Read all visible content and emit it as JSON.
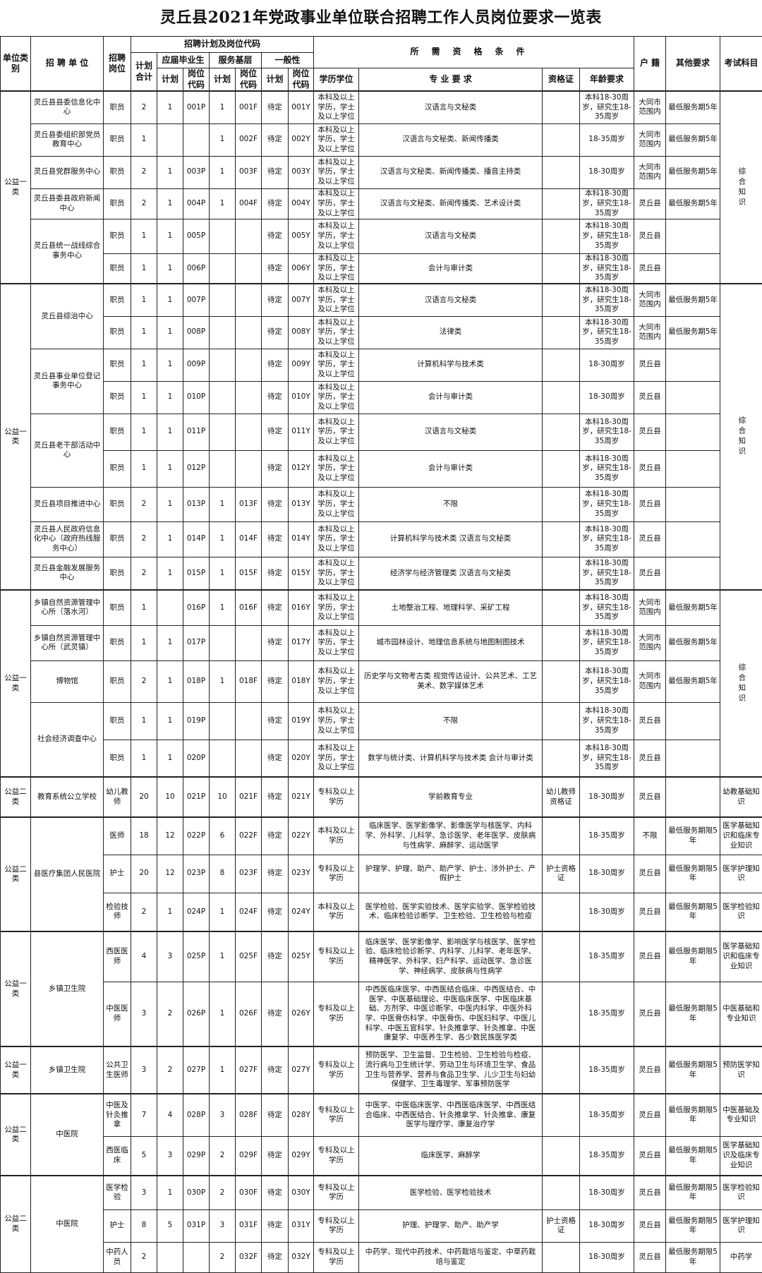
{
  "title": "灵丘县2021年党政事业单位联合招聘工作人员岗位要求一览表",
  "header": {
    "category": "单位类别",
    "unit": "招 聘 单 位",
    "post": "招聘岗位",
    "plan_group": "招聘计划及岗位代码",
    "plan_total": "计划合计",
    "graduates": "应届毕业生",
    "grassroots": "服务基层",
    "general": "一般性",
    "plan": "计划",
    "code": "岗位代码",
    "requirements": "所需资格条件",
    "education": "学历学位",
    "major": "专 业 要 求",
    "certificate": "资格证",
    "age": "年龄要求",
    "residence": "户 籍",
    "other": "其他要求",
    "exam": "考试科目"
  },
  "blocks": [
    {
      "category": "公益一类",
      "exam": "综合知识",
      "units": [
        {
          "name": "灵丘县县委信息化中心",
          "positions": [
            {
              "post": "职员",
              "total": "2",
              "g_plan": "1",
              "g_code": "001P",
              "s_plan": "1",
              "s_code": "001F",
              "n_plan": "待定",
              "n_code": "001Y",
              "edu": "本科及以上学历，学士及以上学位",
              "major": "汉语言与文秘类",
              "cert": "",
              "age": "本科18-30周岁，研究生18-35周岁",
              "residence": "大同市范围内",
              "other": "最低服务期5年"
            }
          ]
        },
        {
          "name": "灵丘县委组织部党员教育中心",
          "positions": [
            {
              "post": "职员",
              "total": "1",
              "g_plan": "",
              "g_code": "",
              "s_plan": "1",
              "s_code": "002F",
              "n_plan": "待定",
              "n_code": "002Y",
              "edu": "本科及以上学历，学士及以上学位",
              "major": "汉语言与文秘类、新闻传播类",
              "cert": "",
              "age": "18-35周岁",
              "residence": "大同市范围内",
              "other": "最低服务期5年"
            }
          ]
        },
        {
          "name": "灵丘县党群服务中心",
          "positions": [
            {
              "post": "职员",
              "total": "2",
              "g_plan": "1",
              "g_code": "003P",
              "s_plan": "1",
              "s_code": "003F",
              "n_plan": "待定",
              "n_code": "003Y",
              "edu": "本科及以上学历，学士及以上学位",
              "major": "汉语言与文秘类、新闻传播类、播音主持类",
              "cert": "",
              "age": "18-30周岁",
              "residence": "大同市范围内",
              "other": "最低服务期5年"
            }
          ]
        },
        {
          "name": "灵丘县委县政府新闻中心",
          "positions": [
            {
              "post": "职员",
              "total": "2",
              "g_plan": "1",
              "g_code": "004P",
              "s_plan": "1",
              "s_code": "004F",
              "n_plan": "待定",
              "n_code": "004Y",
              "edu": "本科及以上学历，学士及以上学位",
              "major": "汉语言与文秘类、新闻传播类、艺术设计类",
              "cert": "",
              "age": "本科18-30周岁，研究生18-35周岁",
              "residence": "灵丘县",
              "other": "最低服务期5年"
            }
          ]
        },
        {
          "name": "灵丘县统一战线综合事务中心",
          "positions": [
            {
              "post": "职员",
              "total": "1",
              "g_plan": "1",
              "g_code": "005P",
              "s_plan": "",
              "s_code": "",
              "n_plan": "待定",
              "n_code": "005Y",
              "edu": "本科及以上学历，学士及以上学位",
              "major": "汉语言与文秘类",
              "cert": "",
              "age": "本科18-30周岁，研究生18-35周岁",
              "residence": "灵丘县",
              "other": ""
            },
            {
              "post": "职员",
              "total": "1",
              "g_plan": "1",
              "g_code": "006P",
              "s_plan": "",
              "s_code": "",
              "n_plan": "待定",
              "n_code": "006Y",
              "edu": "本科及以上学历，学士及以上学位",
              "major": "会计与审计类",
              "cert": "",
              "age": "本科18-30周岁，研究生18-35周岁",
              "residence": "灵丘县",
              "other": ""
            }
          ]
        }
      ]
    },
    {
      "category": "公益一类",
      "exam": "综合知识",
      "units": [
        {
          "name": "灵丘县综治中心",
          "positions": [
            {
              "post": "职员",
              "total": "1",
              "g_plan": "1",
              "g_code": "007P",
              "s_plan": "",
              "s_code": "",
              "n_plan": "待定",
              "n_code": "007Y",
              "edu": "本科及以上学历，学士及以上学位",
              "major": "汉语言与文秘类",
              "cert": "",
              "age": "本科18-30周岁，研究生18-35周岁",
              "residence": "大同市范围内",
              "other": "最低服务期5年"
            },
            {
              "post": "职员",
              "total": "1",
              "g_plan": "1",
              "g_code": "008P",
              "s_plan": "",
              "s_code": "",
              "n_plan": "待定",
              "n_code": "008Y",
              "edu": "本科及以上学历，学士及以上学位",
              "major": "法律类",
              "cert": "",
              "age": "本科18-30周岁，研究生18-35周岁",
              "residence": "大同市范围内",
              "other": "最低服务期5年"
            }
          ]
        },
        {
          "name": "灵丘县事业单位登记事务中心",
          "positions": [
            {
              "post": "职员",
              "total": "1",
              "g_plan": "1",
              "g_code": "009P",
              "s_plan": "",
              "s_code": "",
              "n_plan": "待定",
              "n_code": "009Y",
              "edu": "本科及以上学历，学士及以上学位",
              "major": "计算机科学与技术类",
              "cert": "",
              "age": "18-30周岁",
              "residence": "灵丘县",
              "other": ""
            },
            {
              "post": "职员",
              "total": "1",
              "g_plan": "1",
              "g_code": "010P",
              "s_plan": "",
              "s_code": "",
              "n_plan": "待定",
              "n_code": "010Y",
              "edu": "本科及以上学历，学士及以上学位",
              "major": "会计与审计类",
              "cert": "",
              "age": "18-30周岁",
              "residence": "灵丘县",
              "other": ""
            }
          ]
        },
        {
          "name": "灵丘县老干部活动中心",
          "positions": [
            {
              "post": "职员",
              "total": "1",
              "g_plan": "1",
              "g_code": "011P",
              "s_plan": "",
              "s_code": "",
              "n_plan": "待定",
              "n_code": "011Y",
              "edu": "本科及以上学历，学士及以上学位",
              "major": "汉语言与文秘类",
              "cert": "",
              "age": "本科18-30周岁，研究生18-35周岁",
              "residence": "灵丘县",
              "other": ""
            },
            {
              "post": "职员",
              "total": "1",
              "g_plan": "1",
              "g_code": "012P",
              "s_plan": "",
              "s_code": "",
              "n_plan": "待定",
              "n_code": "012Y",
              "edu": "本科及以上学历，学士及以上学位",
              "major": "会计与审计类",
              "cert": "",
              "age": "本科18-30周岁，研究生18-35周岁",
              "residence": "灵丘县",
              "other": ""
            }
          ]
        },
        {
          "name": "灵丘县项目推进中心",
          "positions": [
            {
              "post": "职员",
              "total": "2",
              "g_plan": "1",
              "g_code": "013P",
              "s_plan": "1",
              "s_code": "013F",
              "n_plan": "待定",
              "n_code": "013Y",
              "edu": "本科及以上学历，学士及以上学位",
              "major": "不限",
              "cert": "",
              "age": "本科18-30周岁，研究生18-35周岁",
              "residence": "灵丘县",
              "other": ""
            }
          ]
        },
        {
          "name": "灵丘县人民政府信息化中心（政府热线服务中心）",
          "positions": [
            {
              "post": "职员",
              "total": "2",
              "g_plan": "1",
              "g_code": "014P",
              "s_plan": "1",
              "s_code": "014F",
              "n_plan": "待定",
              "n_code": "014Y",
              "edu": "本科及以上学历，学士及以上学位",
              "major": "计算机科学与技术类 汉语言与文秘类",
              "cert": "",
              "age": "本科18-30周岁，研究生18-35周岁",
              "residence": "灵丘县",
              "other": ""
            }
          ]
        },
        {
          "name": "灵丘县金融发展服务中心",
          "positions": [
            {
              "post": "职员",
              "total": "2",
              "g_plan": "1",
              "g_code": "015P",
              "s_plan": "1",
              "s_code": "015F",
              "n_plan": "待定",
              "n_code": "015Y",
              "edu": "本科及以上学历，学士及以上学位",
              "major": "经济学与经济管理类 汉语言与文秘类",
              "cert": "",
              "age": "本科18-30周岁，研究生18-35周岁",
              "residence": "灵丘县",
              "other": ""
            }
          ]
        }
      ]
    },
    {
      "category": "公益一类",
      "exam": "综合知识",
      "units": [
        {
          "name": "乡镇自然资源管理中心所（落水河）",
          "positions": [
            {
              "post": "职员",
              "total": "1",
              "g_plan": "",
              "g_code": "016P",
              "s_plan": "1",
              "s_code": "016F",
              "n_plan": "待定",
              "n_code": "016Y",
              "edu": "本科及以上学历，学士及以上学位",
              "major": "土地整治工程、地理科学、采矿工程",
              "cert": "",
              "age": "本科18-30周岁，研究生18-35周岁",
              "residence": "大同市范围内",
              "other": "最低服务期5年"
            }
          ]
        },
        {
          "name": "乡镇自然资源管理中心所（武灵镇）",
          "positions": [
            {
              "post": "职员",
              "total": "1",
              "g_plan": "1",
              "g_code": "017P",
              "s_plan": "",
              "s_code": "",
              "n_plan": "待定",
              "n_code": "017Y",
              "edu": "本科及以上学历，学士及以上学位",
              "major": "城市园林设计、地理信息系统与地图制图技术",
              "cert": "",
              "age": "本科18-30周岁，研究生18-35周岁",
              "residence": "大同市范围内",
              "other": "最低服务期5年"
            }
          ]
        },
        {
          "name": "博物馆",
          "positions": [
            {
              "post": "职员",
              "total": "2",
              "g_plan": "1",
              "g_code": "018P",
              "s_plan": "1",
              "s_code": "018F",
              "n_plan": "待定",
              "n_code": "018Y",
              "edu": "本科及以上学历，学士及以上学位",
              "major": "历史学与文物考古类 视觉传达设计、公共艺术、工艺美术、数字媒体艺术",
              "cert": "",
              "age": "本科18-30周岁，研究生18-35周岁",
              "residence": "大同市范围内",
              "other": "最低服务期5年"
            }
          ]
        },
        {
          "name": "社会经济调查中心",
          "positions": [
            {
              "post": "职员",
              "total": "1",
              "g_plan": "1",
              "g_code": "019P",
              "s_plan": "",
              "s_code": "",
              "n_plan": "待定",
              "n_code": "019Y",
              "edu": "本科及以上学历，学士及以上学位",
              "major": "不限",
              "cert": "",
              "age": "本科18-30周岁，研究生18-35周岁",
              "residence": "灵丘县",
              "other": ""
            },
            {
              "post": "职员",
              "total": "1",
              "g_plan": "1",
              "g_code": "020P",
              "s_plan": "",
              "s_code": "",
              "n_plan": "待定",
              "n_code": "020Y",
              "edu": "本科及以上学历，学士及以上学位",
              "major": "数学与统计类、计算机科学与技术类 会计与审计类",
              "cert": "",
              "age": "本科18-30周岁，研究生18-35周岁",
              "residence": "灵丘县",
              "other": ""
            }
          ]
        }
      ]
    },
    {
      "category": "公益二类",
      "units": [
        {
          "name": "教育系统公立学校",
          "positions": [
            {
              "post": "幼儿教师",
              "total": "20",
              "g_plan": "10",
              "g_code": "021P",
              "s_plan": "10",
              "s_code": "021F",
              "n_plan": "待定",
              "n_code": "021Y",
              "edu": "专科及以上学历",
              "major": "学前教育专业",
              "cert": "幼儿教师资格证",
              "age": "18-30周岁",
              "residence": "灵丘县",
              "other": "",
              "exam": "幼教基础知识"
            }
          ]
        }
      ]
    },
    {
      "category": "公益二类",
      "units": [
        {
          "name": "县医疗集团人民医院",
          "positions": [
            {
              "post": "医师",
              "total": "18",
              "g_plan": "12",
              "g_code": "022P",
              "s_plan": "6",
              "s_code": "022F",
              "n_plan": "待定",
              "n_code": "022Y",
              "edu": "本科及以上学历",
              "major": "临床医学、医学影像学、影像医学与核医学、内科学、外科学、儿科学、急诊医学、老年医学、皮肤病与性病学、麻醉学、运动医学",
              "cert": "",
              "age": "18-35周岁",
              "residence": "不限",
              "other": "最低服务期限5年",
              "exam": "医学基础知识和临床专业知识"
            },
            {
              "post": "护士",
              "total": "20",
              "g_plan": "12",
              "g_code": "023P",
              "s_plan": "8",
              "s_code": "023F",
              "n_plan": "待定",
              "n_code": "023Y",
              "edu": "专科及以上学历",
              "major": "护理学、护理、助产、助产学、护士、涉外护士、产假护士",
              "cert": "护士资格证",
              "age": "18-30周岁",
              "residence": "灵丘县",
              "other": "最低服务期限5年",
              "exam": "医学护理知识"
            },
            {
              "post": "检验技师",
              "total": "2",
              "g_plan": "1",
              "g_code": "024P",
              "s_plan": "1",
              "s_code": "024F",
              "n_plan": "待定",
              "n_code": "024Y",
              "edu": "本科及以上学历",
              "major": "医学检验、医学实验技术、医学实验学、医学检验技术、临床检验诊断学、卫生检验、卫生检验与检疫",
              "cert": "",
              "age": "18-30周岁",
              "residence": "灵丘县",
              "other": "最低服务期限5年",
              "exam": "医学检验知识"
            }
          ]
        }
      ]
    },
    {
      "category": "公益一类",
      "units": [
        {
          "name": "乡镇卫生院",
          "positions": [
            {
              "post": "西医医师",
              "total": "4",
              "g_plan": "3",
              "g_code": "025P",
              "s_plan": "1",
              "s_code": "025F",
              "n_plan": "待定",
              "n_code": "025Y",
              "edu": "专科及以上学历",
              "major": "临床医学、医学影像学、影响医学与核医学、医学检验、临床检验诊断学、内科学、儿科学、老年医学、精神医学、外科学、妇产科学、运动医学、急诊医学、神经病学、皮肤病与性病学",
              "cert": "",
              "age": "18-35周岁",
              "residence": "灵丘县",
              "other": "最低服务期限5年",
              "exam": "医学基础知识和临床专业知识"
            },
            {
              "post": "中医医师",
              "total": "3",
              "g_plan": "2",
              "g_code": "026P",
              "s_plan": "1",
              "s_code": "026F",
              "n_plan": "待定",
              "n_code": "026Y",
              "edu": "专科及以上学历",
              "major": "中西医临床医学、中西医结合临床、中西医结合、中医学、中医基础理论、中医临床医学、中医临床基础、方剂学、中医诊断学、中医内科学、中医外科学、中医骨伤科学、中医骨伤、中医妇科学、中医儿科学、中医五官科学、针灸推拿学、针灸推拿、中医康复学、中医养生学、各少数民族医学类",
              "cert": "",
              "age": "18-35周岁",
              "residence": "灵丘县",
              "other": "最低服务期限5年",
              "exam": "中医基础和专业知识"
            }
          ]
        }
      ]
    },
    {
      "category": "公益一类",
      "units": [
        {
          "name": "乡镇卫生院",
          "positions": [
            {
              "post": "公共卫生医师",
              "total": "3",
              "g_plan": "2",
              "g_code": "027P",
              "s_plan": "1",
              "s_code": "027F",
              "n_plan": "待定",
              "n_code": "027Y",
              "edu": "专科及以上学历",
              "major": "预防医学、卫生监督、卫生检验、卫生检验与检疫、流行病与卫生统计学、劳动卫生与环境卫生学、食品卫生与营养学、营养与食品卫生学、儿少卫生与妇幼保健学、卫生毒理学、军事预防医学",
              "cert": "",
              "age": "18-35周岁",
              "residence": "灵丘县",
              "other": "最低服务期限5年",
              "exam": "预防医学知识"
            }
          ]
        }
      ]
    },
    {
      "category": "公益二类",
      "units": [
        {
          "name": "中医院",
          "positions": [
            {
              "post": "中医及针灸推拿",
              "total": "7",
              "g_plan": "4",
              "g_code": "028P",
              "s_plan": "3",
              "s_code": "028F",
              "n_plan": "待定",
              "n_code": "028Y",
              "edu": "专科及以上学历",
              "major": "中医学、中医临床医学、中西医临床医学、中西医结合临床、中西医结合、针灸推拿学、针灸推拿、康复医学与理疗学、康复治疗学",
              "cert": "",
              "age": "18-35周岁",
              "residence": "灵丘县",
              "other": "最低服务期限5年",
              "exam": "中医基础及专业知识"
            },
            {
              "post": "西医临床",
              "total": "5",
              "g_plan": "3",
              "g_code": "029P",
              "s_plan": "2",
              "s_code": "029F",
              "n_plan": "待定",
              "n_code": "029Y",
              "edu": "专科及以上学历",
              "major": "临床医学、麻醉学",
              "cert": "",
              "age": "18-35周岁",
              "residence": "灵丘县",
              "other": "最低服务期限5年",
              "exam": "医学基础知识及临床专业知识"
            }
          ]
        }
      ]
    },
    {
      "category": "公益二类",
      "units": [
        {
          "name": "中医院",
          "positions": [
            {
              "post": "医学检验",
              "total": "3",
              "g_plan": "1",
              "g_code": "030P",
              "s_plan": "2",
              "s_code": "030F",
              "n_plan": "待定",
              "n_code": "030Y",
              "edu": "专科及以上学历",
              "major": "医学检验、医学检验技术",
              "cert": "",
              "age": "18-30周岁",
              "residence": "灵丘县",
              "other": "最低服务期限5年",
              "exam": "医学检验知识"
            },
            {
              "post": "护士",
              "total": "8",
              "g_plan": "5",
              "g_code": "031P",
              "s_plan": "3",
              "s_code": "031F",
              "n_plan": "待定",
              "n_code": "031Y",
              "edu": "专科及以上学历",
              "major": "护理、护理学、助产、助产学",
              "cert": "护士资格证",
              "age": "18-30周岁",
              "residence": "灵丘县",
              "other": "最低服务期限5年",
              "exam": "医学护理知识"
            },
            {
              "post": "中药人员",
              "total": "2",
              "g_plan": "",
              "g_code": "",
              "s_plan": "2",
              "s_code": "032F",
              "n_plan": "待定",
              "n_code": "032Y",
              "edu": "专科及以上学历",
              "major": "中药学、现代中药技术、中药栽培与鉴定、中草药栽培与鉴定",
              "cert": "",
              "age": "18-30周岁",
              "residence": "灵丘县",
              "other": "最低服务期限5年",
              "exam": "中药学"
            }
          ]
        }
      ]
    }
  ]
}
